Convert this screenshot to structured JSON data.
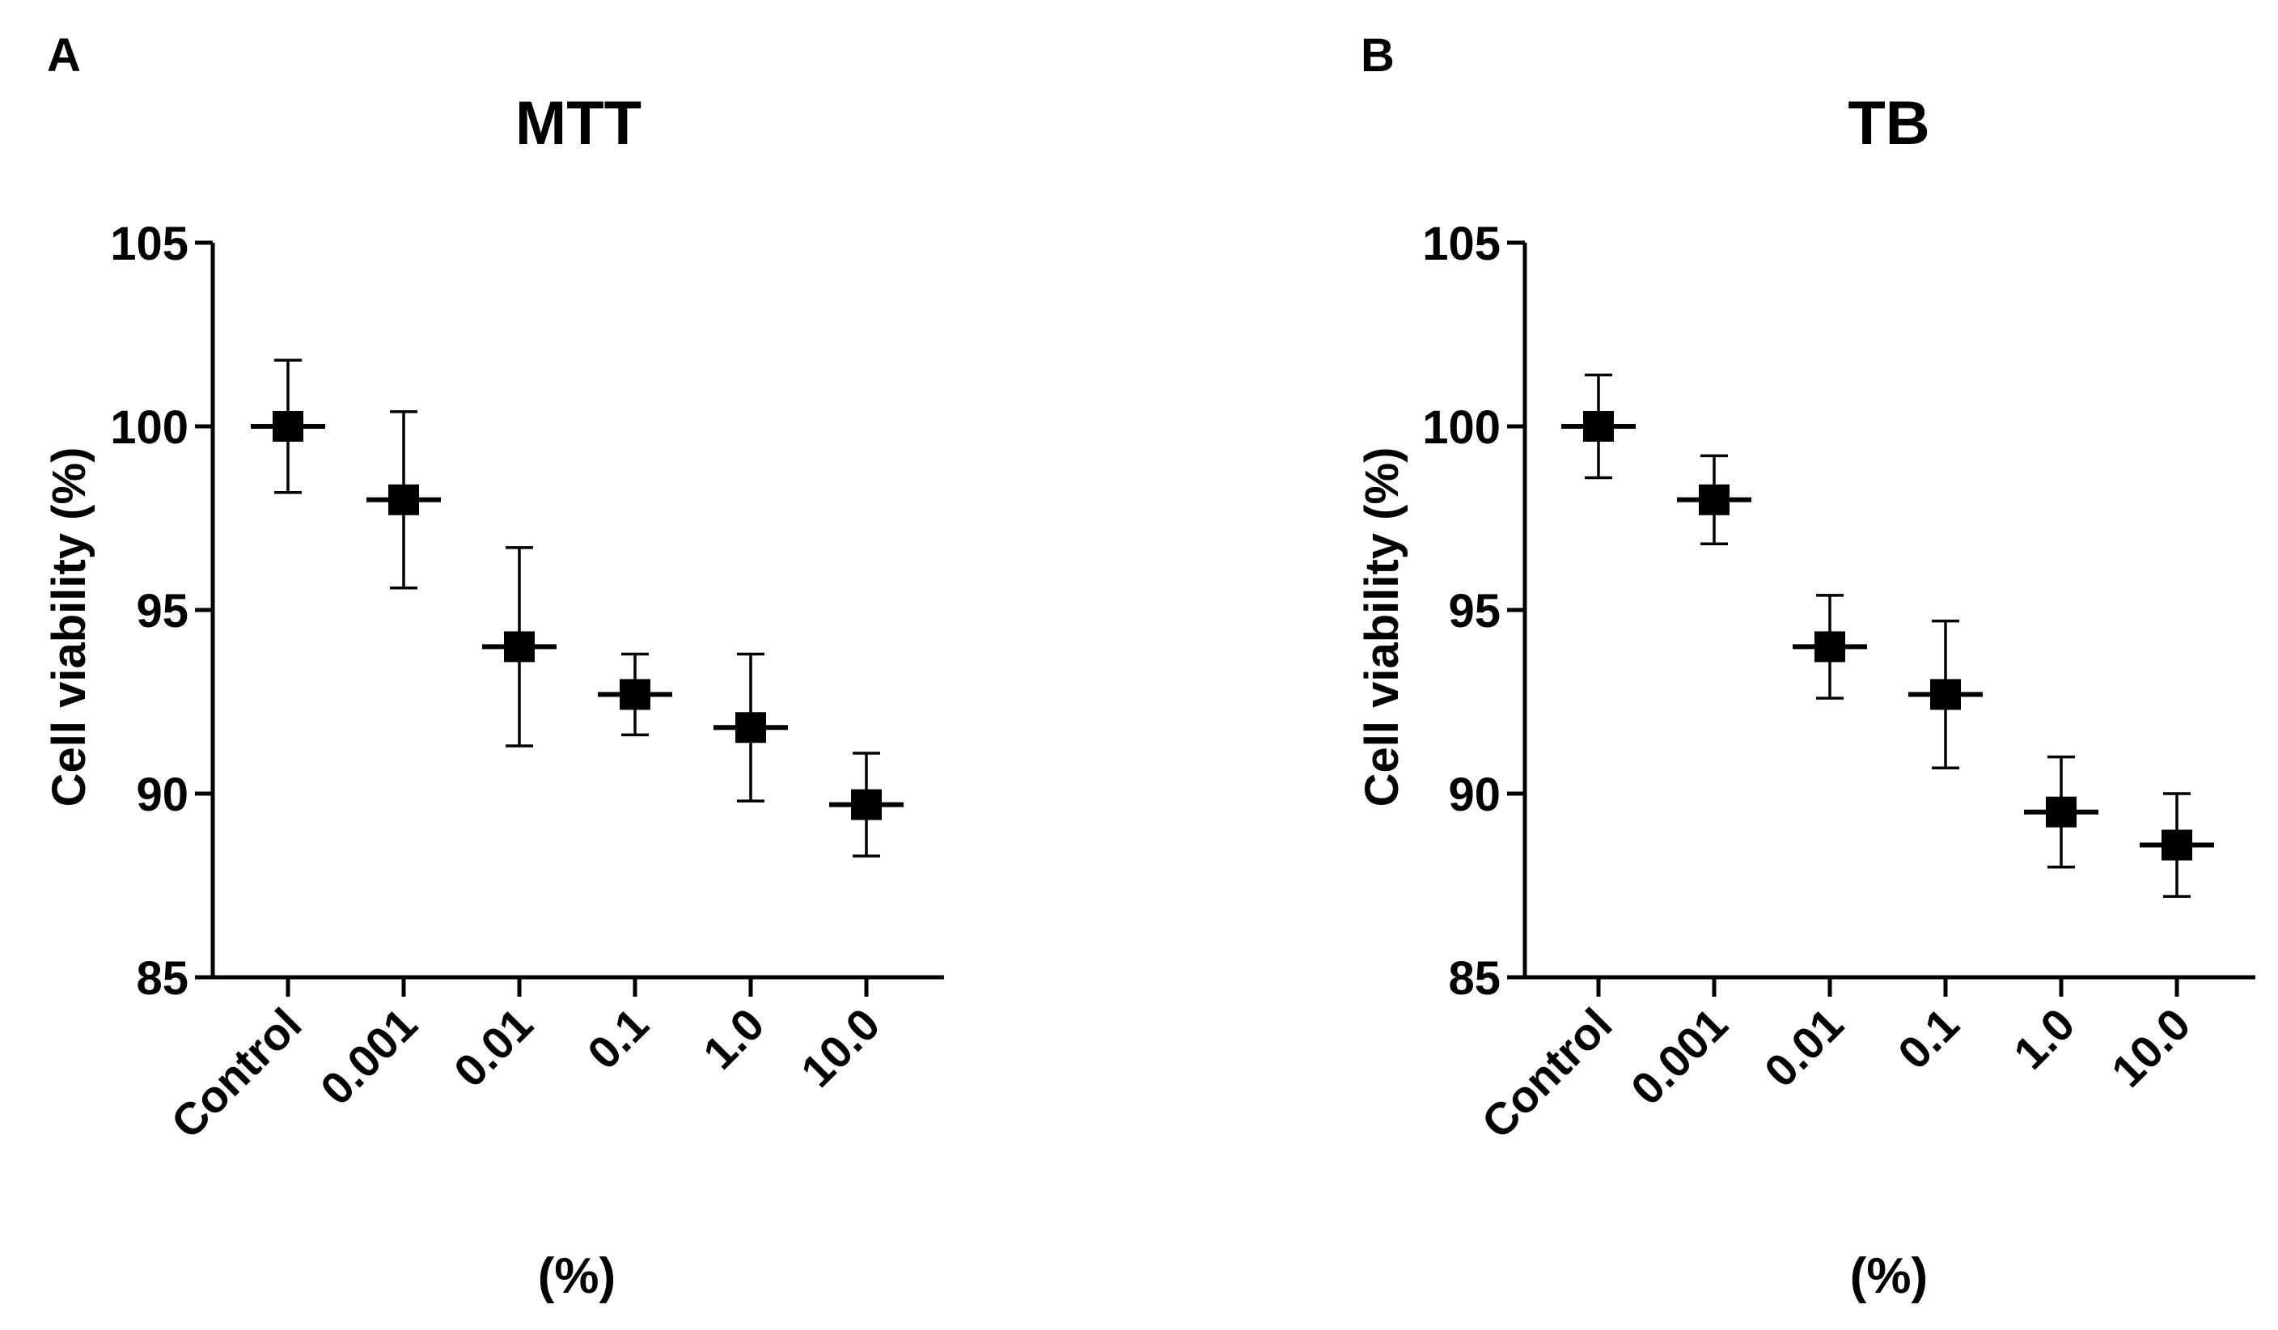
{
  "chart_data": [
    {
      "panel_label": "A",
      "type": "scatter",
      "title": "MTT",
      "xlabel": "(%)",
      "ylabel": "Cell viability (%)",
      "categories": [
        "Control",
        "0.001",
        "0.01",
        "0.1",
        "1.0",
        "10.0"
      ],
      "values": [
        100.0,
        98.0,
        94.0,
        92.7,
        91.8,
        89.7
      ],
      "error_upper": [
        101.8,
        100.4,
        96.7,
        93.8,
        93.8,
        91.1
      ],
      "error_lower": [
        98.2,
        95.6,
        91.3,
        91.6,
        89.8,
        88.3
      ],
      "ylim": [
        85,
        105
      ],
      "yticks": [
        85,
        90,
        95,
        100,
        105
      ],
      "marker": "square",
      "color": "#000000",
      "grid": false
    },
    {
      "panel_label": "B",
      "type": "scatter",
      "title": "TB",
      "xlabel": "(%)",
      "ylabel": "Cell viability (%)",
      "categories": [
        "Control",
        "0.001",
        "0.01",
        "0.1",
        "1.0",
        "10.0"
      ],
      "values": [
        100.0,
        98.0,
        94.0,
        92.7,
        89.5,
        88.6
      ],
      "error_upper": [
        101.4,
        99.2,
        95.4,
        94.7,
        91.0,
        90.0
      ],
      "error_lower": [
        98.6,
        96.8,
        92.6,
        90.7,
        88.0,
        87.2
      ],
      "ylim": [
        85,
        105
      ],
      "yticks": [
        85,
        90,
        95,
        100,
        105
      ],
      "marker": "square",
      "color": "#000000",
      "grid": false
    }
  ]
}
